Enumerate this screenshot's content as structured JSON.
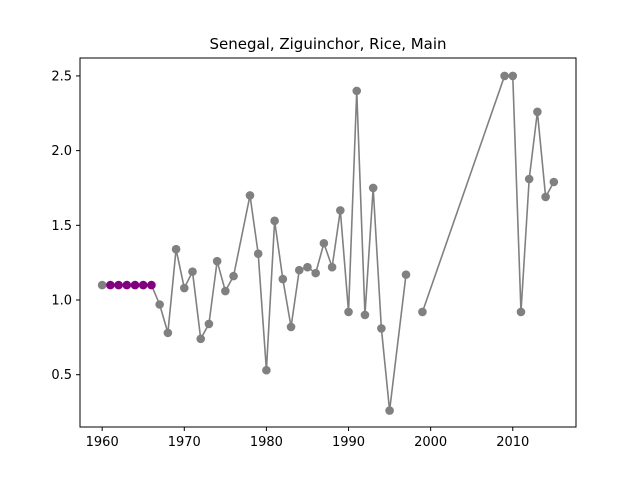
{
  "chart_data": {
    "type": "line",
    "title": "Senegal, Ziguinchor, Rice, Main",
    "xlabel": "",
    "ylabel": "",
    "xlim": [
      1957.3,
      2017.7
    ],
    "ylim": [
      0.15,
      2.62
    ],
    "xticks": [
      1960,
      1970,
      1980,
      1990,
      2000,
      2010
    ],
    "yticks": [
      0.5,
      1.0,
      1.5,
      2.0,
      2.5
    ],
    "xtick_labels": [
      "1960",
      "1970",
      "1980",
      "1990",
      "2000",
      "2010"
    ],
    "ytick_labels": [
      "0.5",
      "1.0",
      "1.5",
      "2.0",
      "2.5"
    ],
    "grid": false,
    "line_color": "#808080",
    "marker_color": "#808080",
    "highlight_color": "#800080",
    "series": [
      {
        "segments": [
          [
            {
              "x": 1960,
              "y": 1.1
            },
            {
              "x": 1961,
              "y": 1.1
            },
            {
              "x": 1962,
              "y": 1.1
            },
            {
              "x": 1963,
              "y": 1.1
            },
            {
              "x": 1964,
              "y": 1.1
            },
            {
              "x": 1965,
              "y": 1.1
            },
            {
              "x": 1966,
              "y": 1.1
            },
            {
              "x": 1967,
              "y": 0.97
            },
            {
              "x": 1968,
              "y": 0.78
            },
            {
              "x": 1969,
              "y": 1.34
            },
            {
              "x": 1970,
              "y": 1.08
            },
            {
              "x": 1971,
              "y": 1.19
            },
            {
              "x": 1972,
              "y": 0.74
            },
            {
              "x": 1973,
              "y": 0.84
            },
            {
              "x": 1974,
              "y": 1.26
            },
            {
              "x": 1975,
              "y": 1.06
            },
            {
              "x": 1976,
              "y": 1.16
            },
            {
              "x": 1978,
              "y": 1.7
            },
            {
              "x": 1979,
              "y": 1.31
            },
            {
              "x": 1980,
              "y": 0.53
            },
            {
              "x": 1981,
              "y": 1.53
            },
            {
              "x": 1982,
              "y": 1.14
            },
            {
              "x": 1983,
              "y": 0.82
            },
            {
              "x": 1984,
              "y": 1.2
            },
            {
              "x": 1985,
              "y": 1.22
            },
            {
              "x": 1986,
              "y": 1.18
            },
            {
              "x": 1987,
              "y": 1.38
            },
            {
              "x": 1988,
              "y": 1.22
            },
            {
              "x": 1989,
              "y": 1.6
            },
            {
              "x": 1990,
              "y": 0.92
            },
            {
              "x": 1991,
              "y": 2.4
            },
            {
              "x": 1992,
              "y": 0.9
            },
            {
              "x": 1993,
              "y": 1.75
            },
            {
              "x": 1994,
              "y": 0.81
            },
            {
              "x": 1995,
              "y": 0.26
            },
            {
              "x": 1997,
              "y": 1.17
            }
          ],
          [
            {
              "x": 1999,
              "y": 0.92
            },
            {
              "x": 2009,
              "y": 2.5
            },
            {
              "x": 2010,
              "y": 2.5
            },
            {
              "x": 2011,
              "y": 0.92
            },
            {
              "x": 2012,
              "y": 1.81
            },
            {
              "x": 2013,
              "y": 2.26
            },
            {
              "x": 2014,
              "y": 1.69
            },
            {
              "x": 2015,
              "y": 1.79
            }
          ]
        ],
        "highlighted_x": [
          1961,
          1962,
          1963,
          1964,
          1965,
          1966
        ]
      }
    ]
  }
}
